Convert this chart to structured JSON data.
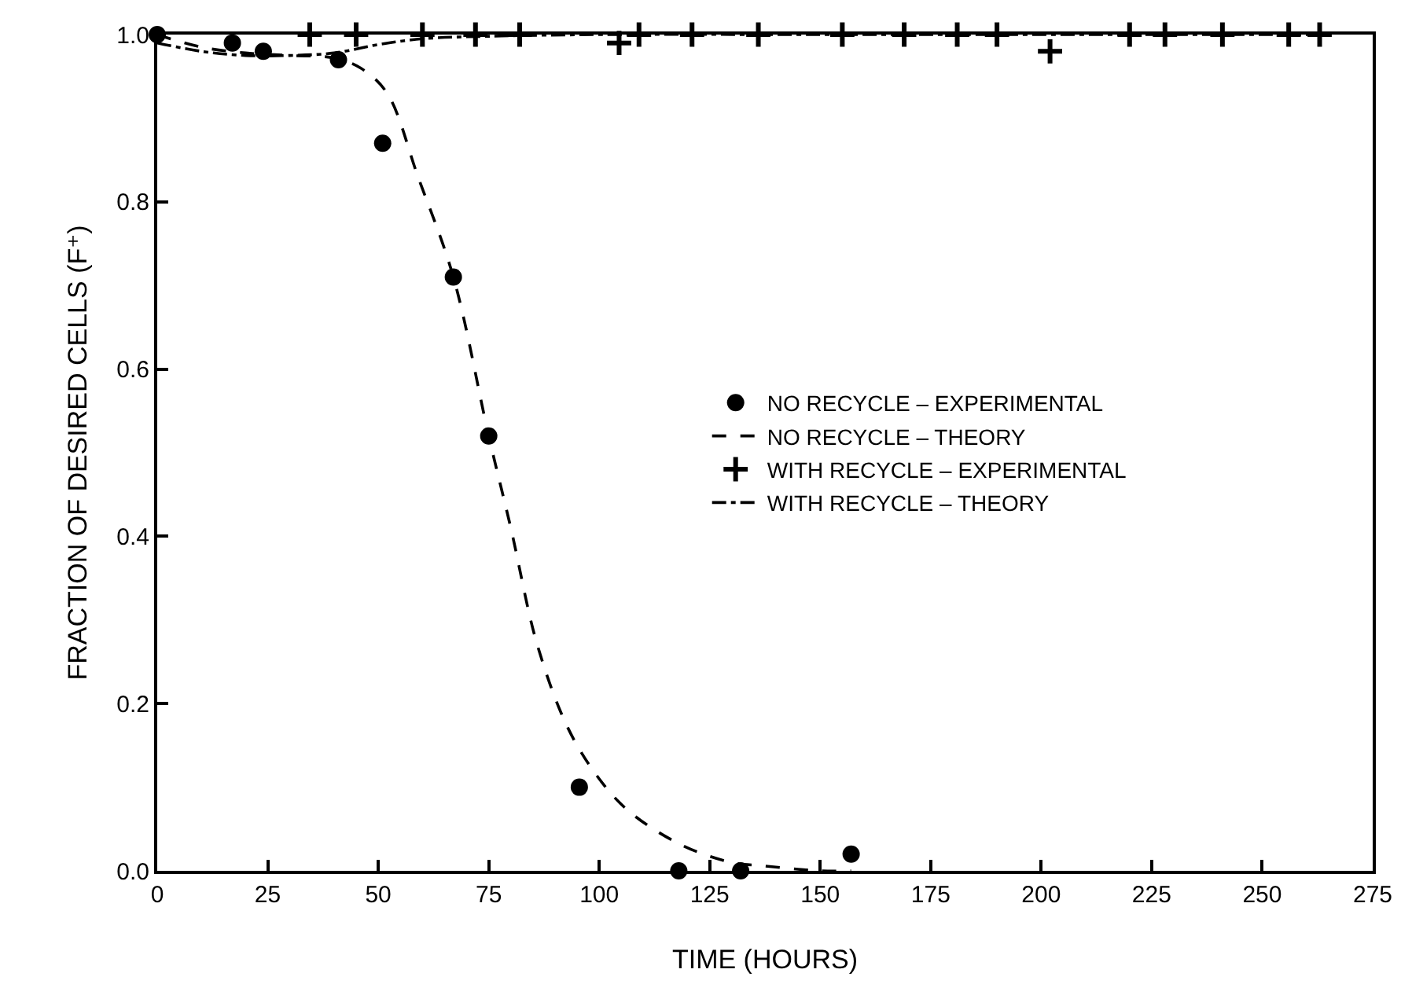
{
  "chart_data": {
    "type": "scatter",
    "xlabel": "TIME (HOURS)",
    "ylabel": "FRACTION OF DESIRED CELLS (F⁺)",
    "xlim": [
      0,
      275
    ],
    "xticks": [
      0,
      25,
      50,
      75,
      100,
      125,
      150,
      175,
      200,
      225,
      250,
      275
    ],
    "ylim": [
      0,
      1
    ],
    "yticks": [
      {
        "value": 0,
        "label": "0.0"
      },
      {
        "value": 0.2,
        "label": "0.2"
      },
      {
        "value": 0.4,
        "label": "0.4"
      },
      {
        "value": 0.6,
        "label": "0.6"
      },
      {
        "value": 0.8,
        "label": "0.8"
      },
      {
        "value": 1,
        "label": "1.0"
      }
    ],
    "grid": false,
    "legend": "right",
    "series": [
      {
        "name": "NO RECYCLE – EXPERIMENTAL",
        "marker": "circle",
        "color": "#000000",
        "x": [
          0,
          17,
          24,
          41,
          51,
          67,
          75,
          95.5,
          118,
          132,
          157
        ],
        "values": [
          1.0,
          0.99,
          0.98,
          0.97,
          0.87,
          0.71,
          0.52,
          0.1,
          0.0,
          0.0,
          0.02
        ]
      },
      {
        "name": "NO RECYCLE – THEORY",
        "type": "line",
        "marker": "none",
        "line_style": "dashed",
        "color": "#000000",
        "x": [
          0,
          10,
          20,
          30,
          40,
          46,
          52,
          59,
          67,
          75,
          80,
          86,
          93,
          100,
          107,
          119,
          130,
          137,
          150,
          157
        ],
        "values": [
          1.0,
          0.985,
          0.978,
          0.975,
          0.972,
          0.96,
          0.93,
          0.83,
          0.71,
          0.52,
          0.41,
          0.27,
          0.17,
          0.11,
          0.07,
          0.03,
          0.01,
          0.006,
          0.0,
          0.0
        ]
      },
      {
        "name": "WITH RECYCLE – EXPERIMENTAL",
        "marker": "cross",
        "color": "#000000",
        "x": [
          34.5,
          45,
          60,
          72,
          82,
          104.5,
          109,
          121,
          136,
          155,
          169,
          181,
          190,
          202,
          220,
          228,
          241,
          256,
          263
        ],
        "values": [
          1.0,
          1.0,
          1.0,
          1.0,
          1.0,
          0.99,
          1.0,
          1.0,
          1.0,
          1.0,
          1.0,
          1.0,
          1.0,
          0.98,
          1.0,
          1.0,
          1.0,
          1.0,
          1.0
        ]
      },
      {
        "name": "WITH RECYCLE – THEORY",
        "type": "line",
        "marker": "none",
        "line_style": "dashdot",
        "color": "#000000",
        "x": [
          0,
          10,
          20,
          30,
          40,
          50,
          60,
          75,
          100,
          150,
          200,
          265
        ],
        "values": [
          0.99,
          0.98,
          0.975,
          0.975,
          0.978,
          0.988,
          0.995,
          0.998,
          1.0,
          1.0,
          1.0,
          1.0
        ]
      }
    ]
  }
}
